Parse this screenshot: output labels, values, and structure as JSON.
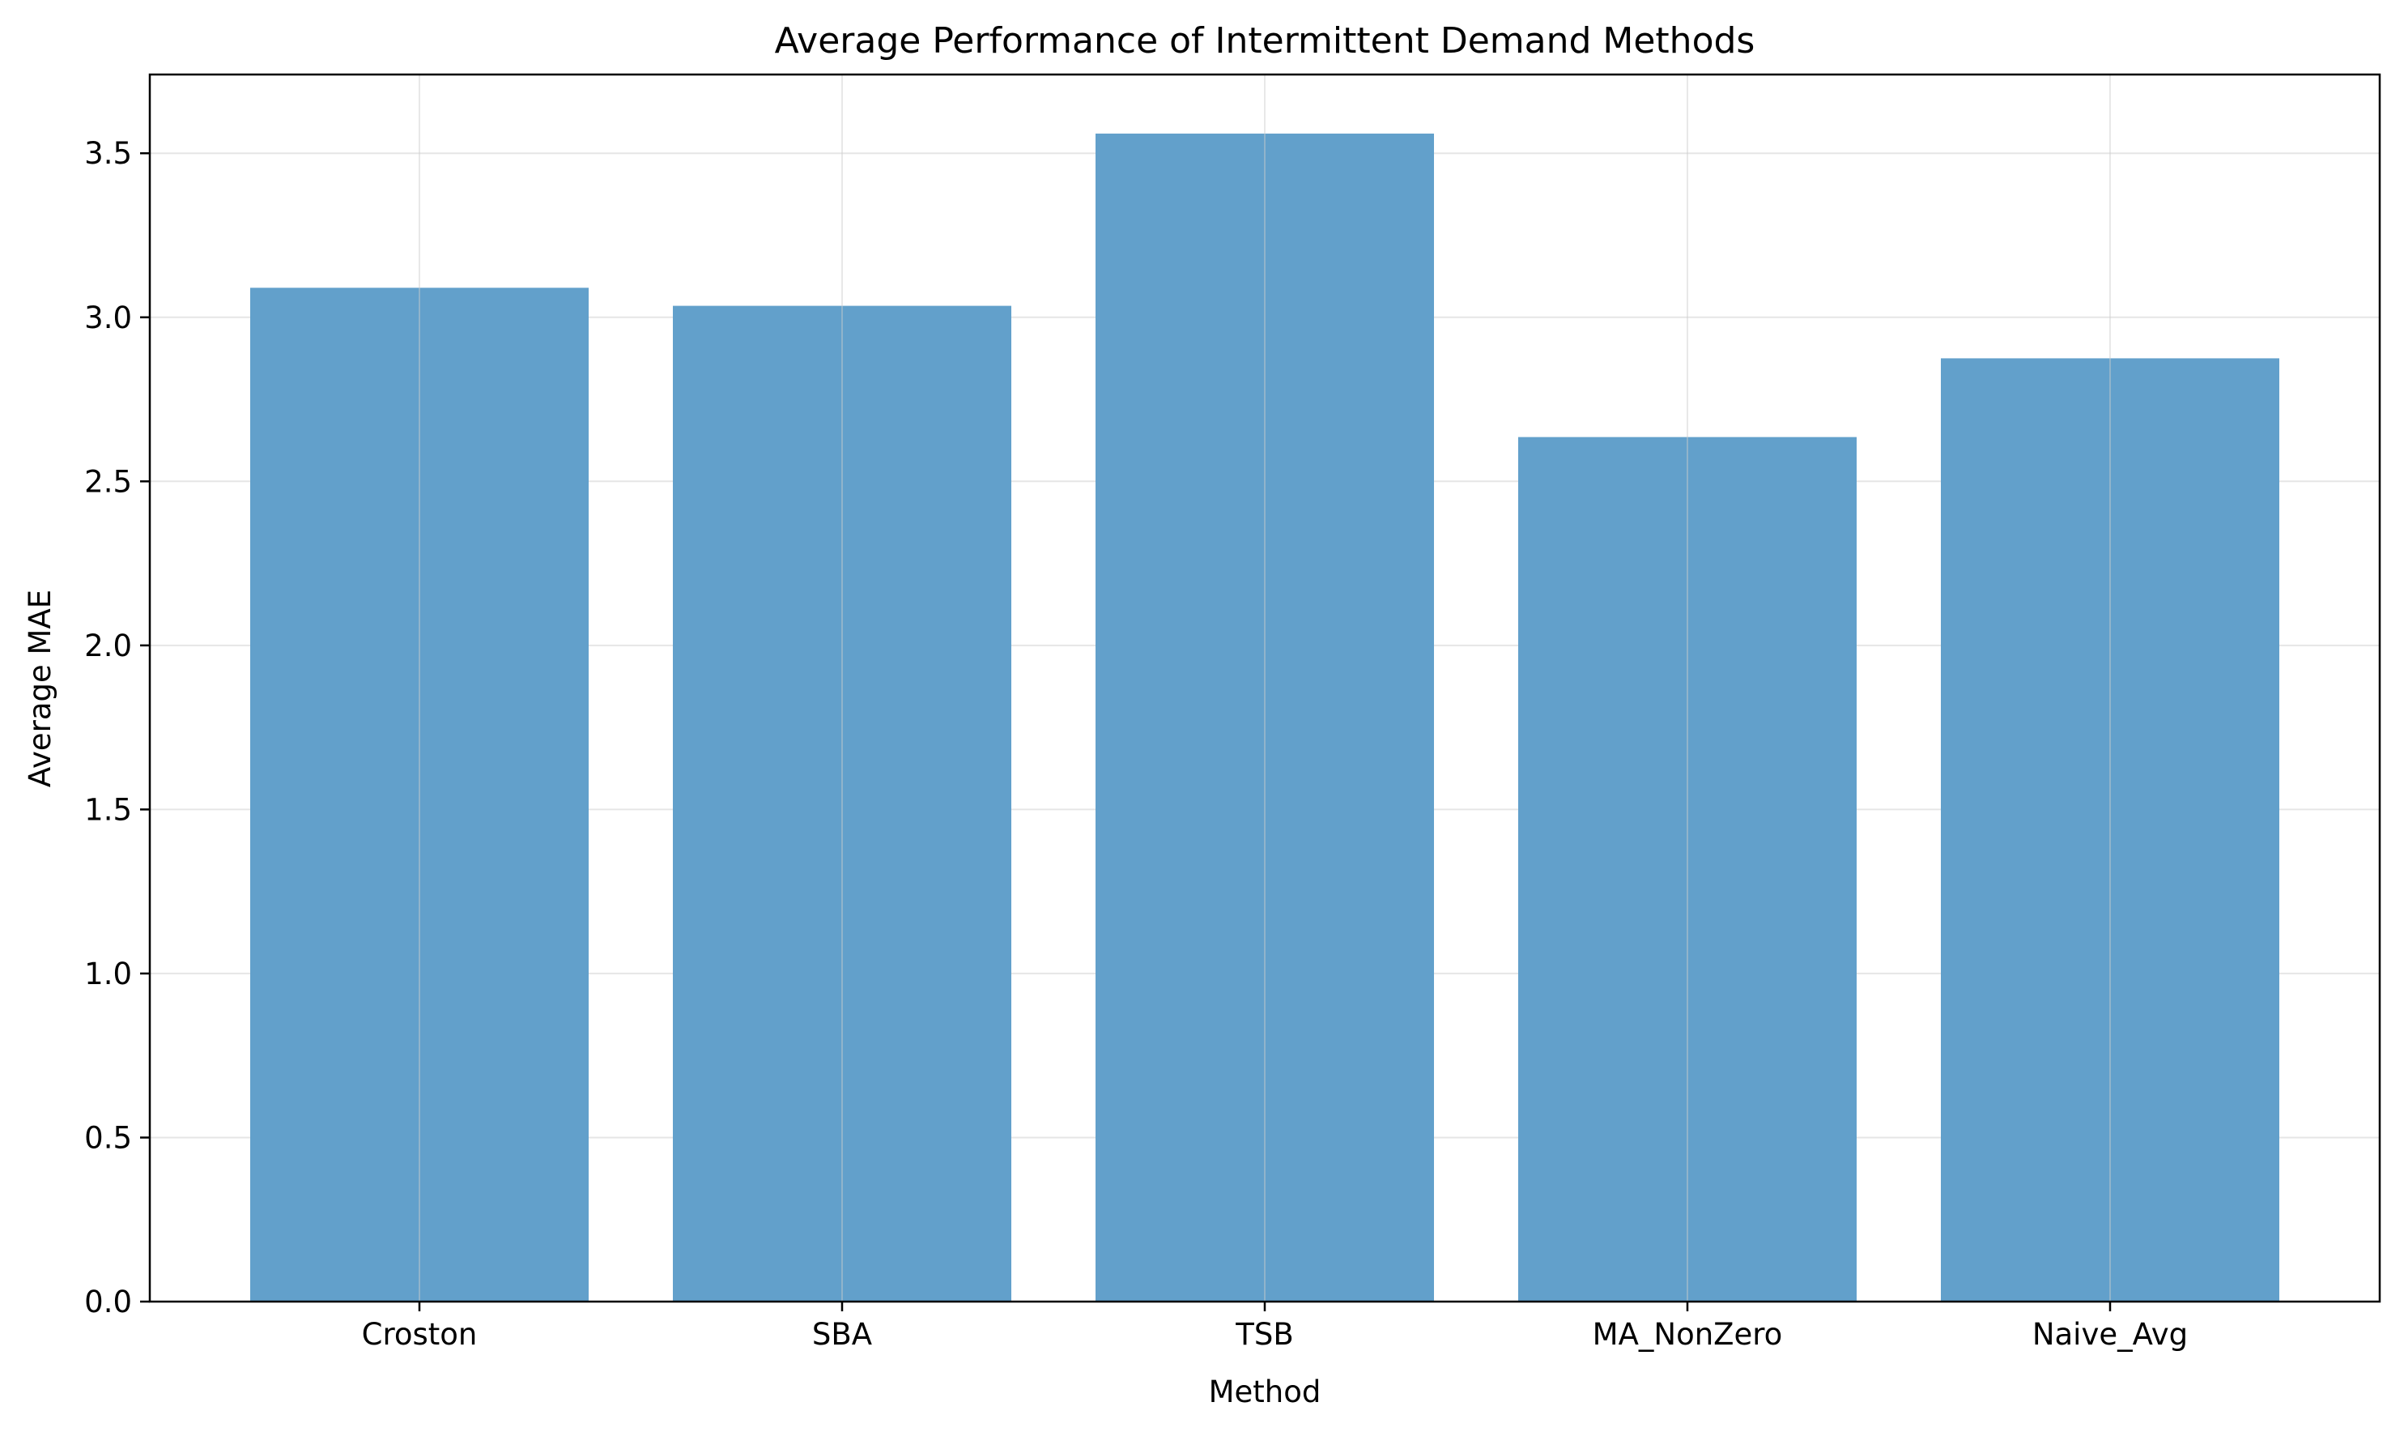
{
  "chart_data": {
    "type": "bar",
    "title": "Average Performance of Intermittent Demand Methods",
    "xlabel": "Method",
    "ylabel": "Average MAE",
    "categories": [
      "Croston",
      "SBA",
      "TSB",
      "MA_NonZero",
      "Naive_Avg"
    ],
    "values": [
      3.09,
      3.035,
      3.56,
      2.635,
      2.875
    ],
    "ylim": [
      0,
      3.74
    ],
    "yticks": [
      "0.0",
      "0.5",
      "1.0",
      "1.5",
      "2.0",
      "2.5",
      "3.0",
      "3.5"
    ],
    "grid": true,
    "legend": "none",
    "colors": {
      "bar": "#62a0cb",
      "grid": "#e6e6e6",
      "axis": "#000000"
    }
  }
}
